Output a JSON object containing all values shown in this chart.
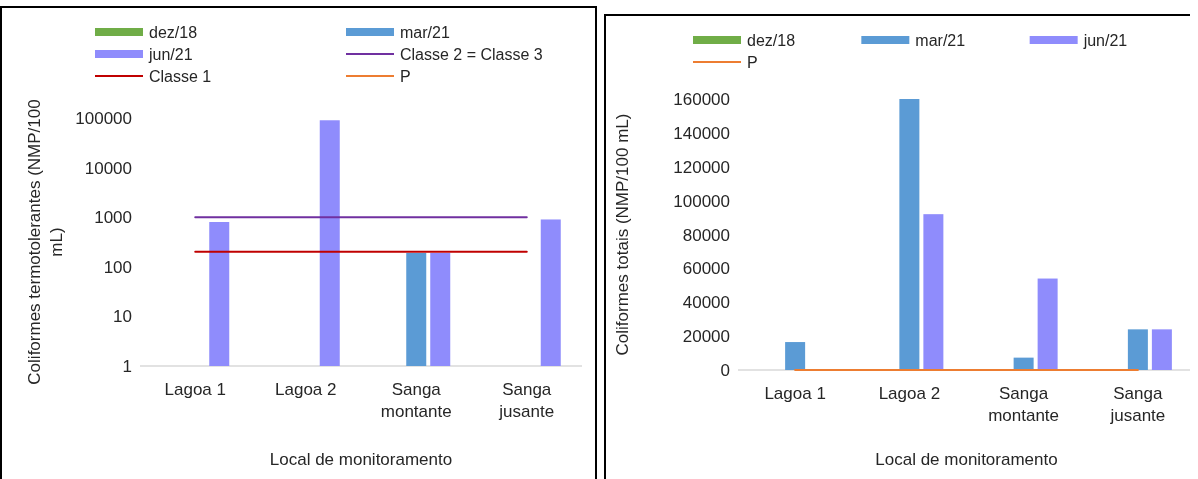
{
  "chart_data": [
    {
      "type": "bar",
      "categories": [
        "Lagoa 1",
        "Lagoa 2",
        "Sanga montante",
        "Sanga jusante"
      ],
      "xlabel": "Local de monitoramento",
      "ylabel": "Coliformes termotolerantes  (NMP/100 mL)",
      "log": true,
      "ylim": [
        1,
        100000
      ],
      "yticks": [
        1,
        10,
        100,
        1000,
        10000,
        100000
      ],
      "legend": "top",
      "series": [
        {
          "name": "dez/18",
          "color": "#70ad47",
          "values": [
            null,
            null,
            null,
            null
          ]
        },
        {
          "name": "mar/21",
          "color": "#5b9bd5",
          "values": [
            null,
            null,
            190,
            null
          ]
        },
        {
          "name": "jun/21",
          "color": "#8f8cfc",
          "values": [
            800,
            90000,
            190,
            900
          ]
        },
        {
          "name": "Classe 2 = Classe 3",
          "type": "line",
          "color": "#7030a0",
          "values": [
            1000,
            1000,
            1000,
            1000
          ]
        },
        {
          "name": "Classe 1",
          "type": "line",
          "color": "#c00000",
          "values": [
            200,
            200,
            200,
            200
          ]
        },
        {
          "name": "P",
          "type": "line",
          "color": "#ed7d31",
          "values": [
            null,
            null,
            null,
            null
          ]
        }
      ]
    },
    {
      "type": "bar",
      "categories": [
        "Lagoa 1",
        "Lagoa 2",
        "Sanga montante",
        "Sanga jusante"
      ],
      "xlabel": "Local de monitoramento",
      "ylabel": "Coliformes totais (NMP/100 mL)",
      "ylim": [
        0,
        160000
      ],
      "yticks": [
        0,
        20000,
        40000,
        60000,
        80000,
        100000,
        120000,
        140000,
        160000
      ],
      "legend": "top",
      "series": [
        {
          "name": "dez/18",
          "color": "#70ad47",
          "values": [
            null,
            null,
            null,
            null
          ]
        },
        {
          "name": "mar/21",
          "color": "#5b9bd5",
          "values": [
            16500,
            160000,
            7300,
            24000
          ]
        },
        {
          "name": "jun/21",
          "color": "#8f8cfc",
          "values": [
            null,
            92000,
            54000,
            24000
          ]
        },
        {
          "name": "P",
          "type": "line",
          "color": "#ed7d31",
          "values": [
            0,
            0,
            0,
            0
          ]
        }
      ]
    }
  ]
}
